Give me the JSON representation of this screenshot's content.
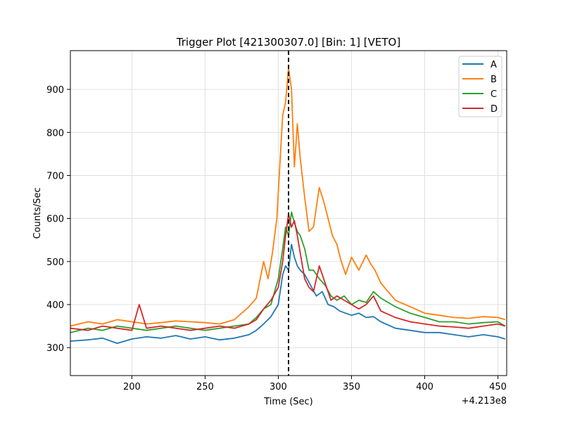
{
  "chart_data": {
    "type": "line",
    "title": "Trigger Plot [421300307.0] [Bin: 1] [VETO]",
    "xlabel": "Time (Sec)",
    "ylabel": "Counts/Sec",
    "x_offset_label": "+4.213e8",
    "xlim": [
      158,
      456
    ],
    "ylim": [
      235,
      990
    ],
    "x_ticks": [
      200,
      250,
      300,
      350,
      400,
      450
    ],
    "y_ticks": [
      300,
      400,
      500,
      600,
      700,
      800,
      900
    ],
    "grid": true,
    "legend_position": "top-right",
    "trigger_line_x": 307,
    "series": [
      {
        "name": "A",
        "color": "#1f77b4",
        "x": [
          158,
          170,
          180,
          190,
          200,
          210,
          220,
          230,
          240,
          250,
          260,
          270,
          280,
          285,
          290,
          295,
          300,
          303,
          305,
          307,
          309,
          311,
          313,
          315,
          318,
          322,
          326,
          330,
          334,
          338,
          342,
          346,
          350,
          355,
          360,
          365,
          370,
          380,
          390,
          400,
          410,
          420,
          430,
          440,
          450,
          455
        ],
        "y": [
          315,
          318,
          322,
          310,
          320,
          325,
          322,
          328,
          320,
          325,
          318,
          322,
          330,
          340,
          355,
          372,
          400,
          470,
          490,
          480,
          540,
          510,
          490,
          480,
          470,
          445,
          420,
          430,
          400,
          395,
          385,
          380,
          375,
          380,
          370,
          372,
          360,
          345,
          340,
          335,
          335,
          330,
          325,
          330,
          325,
          320
        ]
      },
      {
        "name": "B",
        "color": "#ff7f0e",
        "x": [
          158,
          170,
          180,
          190,
          200,
          210,
          220,
          230,
          240,
          250,
          260,
          270,
          280,
          285,
          290,
          293,
          296,
          299,
          301,
          303,
          305,
          307,
          309,
          311,
          313,
          315,
          318,
          321,
          324,
          328,
          331,
          334,
          337,
          340,
          343,
          346,
          350,
          355,
          360,
          363,
          366,
          370,
          375,
          380,
          390,
          400,
          410,
          420,
          430,
          440,
          450,
          455
        ],
        "y": [
          350,
          360,
          355,
          365,
          360,
          355,
          358,
          362,
          360,
          358,
          355,
          365,
          395,
          415,
          500,
          460,
          520,
          600,
          720,
          840,
          870,
          950,
          900,
          720,
          820,
          740,
          650,
          570,
          580,
          672,
          640,
          600,
          560,
          540,
          500,
          470,
          510,
          480,
          515,
          495,
          480,
          450,
          430,
          410,
          395,
          380,
          375,
          370,
          368,
          372,
          370,
          365
        ]
      },
      {
        "name": "C",
        "color": "#2ca02c",
        "x": [
          158,
          170,
          180,
          190,
          200,
          210,
          220,
          230,
          240,
          250,
          260,
          270,
          280,
          285,
          290,
          295,
          300,
          303,
          305,
          307,
          309,
          311,
          313,
          315,
          318,
          321,
          324,
          328,
          332,
          336,
          340,
          345,
          350,
          355,
          360,
          365,
          370,
          380,
          390,
          400,
          410,
          420,
          430,
          440,
          450,
          455
        ],
        "y": [
          335,
          345,
          340,
          350,
          345,
          340,
          345,
          350,
          345,
          340,
          345,
          350,
          355,
          370,
          390,
          400,
          460,
          530,
          580,
          560,
          615,
          590,
          570,
          560,
          530,
          480,
          480,
          460,
          445,
          420,
          410,
          420,
          400,
          410,
          405,
          430,
          415,
          395,
          380,
          370,
          360,
          360,
          355,
          358,
          360,
          350
        ]
      },
      {
        "name": "D",
        "color": "#d62728",
        "x": [
          158,
          170,
          180,
          190,
          200,
          205,
          210,
          220,
          230,
          240,
          250,
          260,
          270,
          280,
          285,
          290,
          295,
          300,
          303,
          305,
          307,
          309,
          311,
          313,
          315,
          318,
          321,
          324,
          328,
          332,
          336,
          340,
          345,
          350,
          355,
          360,
          365,
          370,
          380,
          390,
          400,
          410,
          420,
          430,
          440,
          450,
          455
        ],
        "y": [
          345,
          340,
          350,
          345,
          340,
          400,
          345,
          350,
          345,
          340,
          345,
          350,
          345,
          355,
          365,
          390,
          410,
          440,
          500,
          560,
          610,
          580,
          595,
          560,
          520,
          460,
          440,
          430,
          490,
          450,
          410,
          420,
          410,
          400,
          390,
          400,
          420,
          385,
          370,
          360,
          355,
          350,
          348,
          345,
          350,
          355,
          350
        ]
      }
    ]
  }
}
